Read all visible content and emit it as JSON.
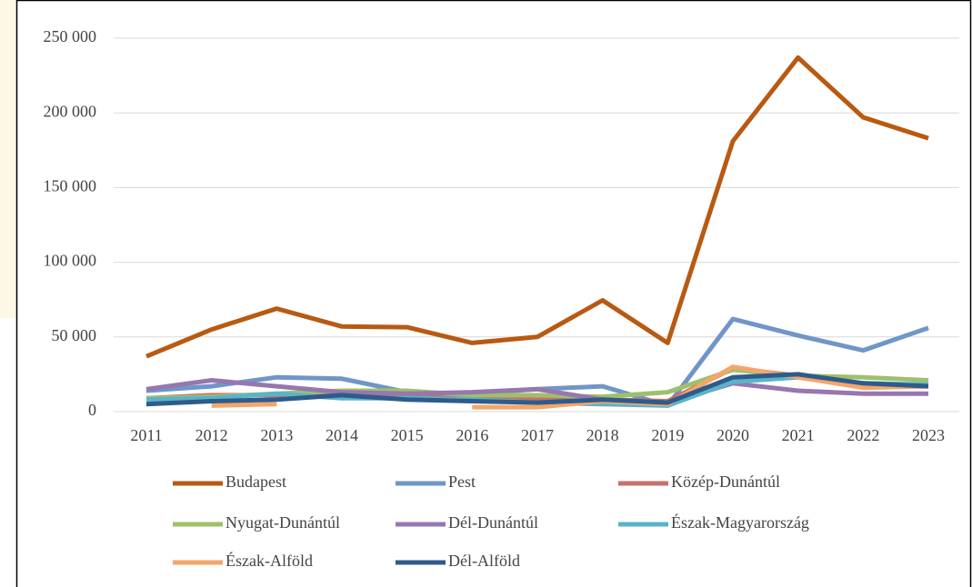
{
  "chart_data": {
    "type": "line",
    "x": [
      "2011",
      "2012",
      "2013",
      "2014",
      "2015",
      "2016",
      "2017",
      "2018",
      "2019",
      "2020",
      "2021",
      "2022",
      "2023"
    ],
    "ylim": [
      0,
      250000
    ],
    "yticks": [
      0,
      {
        "value": 50000,
        "label": "50 000"
      },
      {
        "value": 100000,
        "label": "100 000"
      },
      {
        "value": 150000,
        "label": "150 000"
      },
      {
        "value": 200000,
        "label": "200 000"
      },
      {
        "value": 250000,
        "label": "250 000"
      }
    ],
    "grid": true,
    "legend": "bottom",
    "series": [
      {
        "name": "Budapest",
        "color": "#b85a12",
        "values": [
          37000,
          55000,
          69000,
          57000,
          56500,
          46000,
          50000,
          74500,
          46000,
          181000,
          237000,
          197000,
          183000
        ]
      },
      {
        "name": "Pest",
        "color": "#7096c8",
        "values": [
          14000,
          17000,
          23000,
          22000,
          13000,
          12000,
          15000,
          17000,
          4000,
          62000,
          51000,
          41000,
          56000
        ]
      },
      {
        "name": "Közép-Dunántúl",
        "color": "#c8706a",
        "values": [
          9000,
          11000,
          11000,
          11000,
          10000,
          9000,
          8000,
          8000,
          7000,
          29000,
          24000,
          18000,
          18000
        ]
      },
      {
        "name": "Nyugat-Dunántúl",
        "color": "#9fc06a",
        "values": [
          9000,
          10000,
          12000,
          14000,
          14000,
          11000,
          11000,
          10000,
          13000,
          28000,
          24000,
          23000,
          21000
        ]
      },
      {
        "name": "Dél-Dunántúl",
        "color": "#9677b0",
        "values": [
          15000,
          21000,
          17000,
          13000,
          12000,
          13000,
          15000,
          8000,
          6000,
          19000,
          14000,
          12000,
          12000
        ]
      },
      {
        "name": "Észak-Magyarország",
        "color": "#5ab4c8",
        "values": [
          8000,
          9000,
          12000,
          9000,
          9000,
          8000,
          6000,
          5000,
          4000,
          20000,
          23000,
          19000,
          18000
        ]
      },
      {
        "name": "Észak-Alföld",
        "color": "#f4a66a",
        "values": [
          null,
          4000,
          5000,
          null,
          null,
          3000,
          3000,
          7000,
          5000,
          30000,
          23000,
          16000,
          17000
        ]
      },
      {
        "name": "Dél-Alföld",
        "color": "#2f5b8c",
        "values": [
          5000,
          7000,
          8000,
          11000,
          8000,
          7000,
          6000,
          8000,
          6000,
          23000,
          25000,
          19000,
          17000
        ]
      }
    ]
  }
}
